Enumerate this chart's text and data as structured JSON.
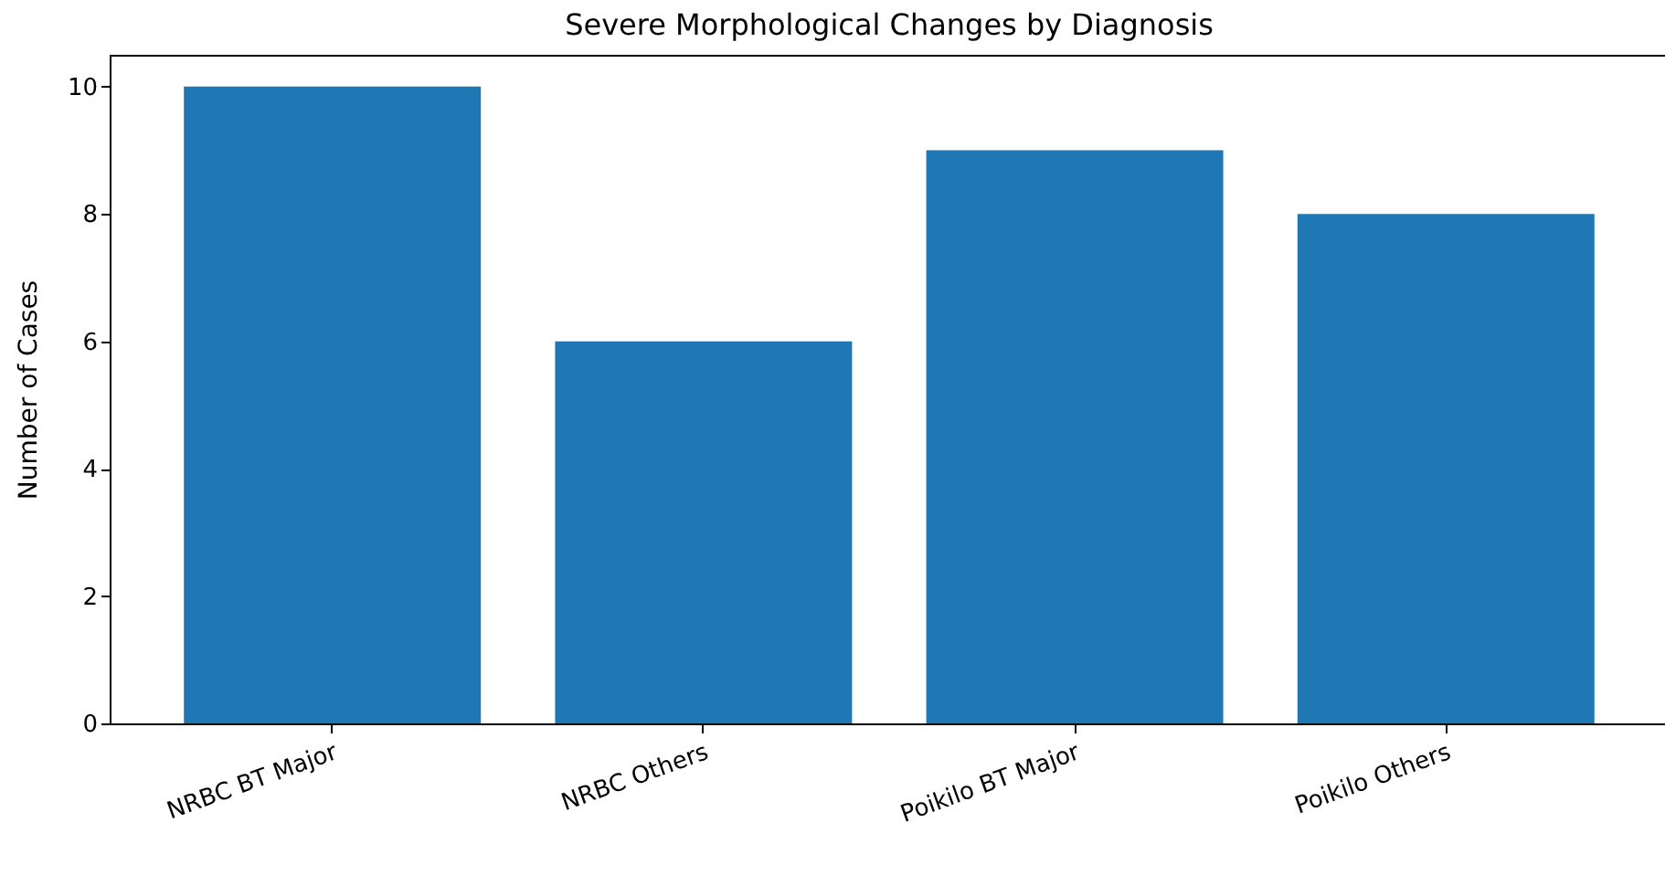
{
  "chart_data": {
    "type": "bar",
    "title": "Severe Morphological Changes by Diagnosis",
    "ylabel": "Number of Cases",
    "categories": [
      "NRBC BT Major",
      "NRBC Others",
      "Poikilo BT Major",
      "Poikilo Others"
    ],
    "values": [
      10,
      6,
      9,
      8
    ],
    "color": "#1f77b4",
    "ylim": [
      0,
      10.5
    ],
    "yticks": [
      0,
      2,
      4,
      6,
      8,
      10
    ],
    "grid": false
  }
}
